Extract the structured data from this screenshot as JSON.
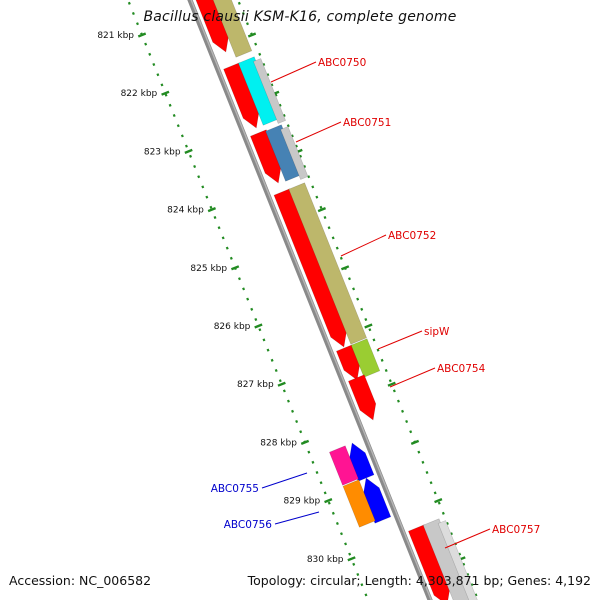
{
  "title": "Bacillus clausii KSM-K16, complete genome",
  "accession_label": "Accession: NC_006582",
  "summary": "Topology: circular; Length: 4,303,871 bp; Genes: 4,192",
  "colors": {
    "backbone": "#8a8a8a",
    "tick": "#228b22",
    "label_forward": "#e00000",
    "label_reverse": "#0000cc",
    "ruler_text": "#111111"
  },
  "ruler": {
    "ticks": [
      {
        "label": "821 kbp"
      },
      {
        "label": "822 kbp"
      },
      {
        "label": "823 kbp"
      },
      {
        "label": "824 kbp"
      },
      {
        "label": "825 kbp"
      },
      {
        "label": "826 kbp"
      },
      {
        "label": "827 kbp"
      },
      {
        "label": "828 kbp"
      },
      {
        "label": "829 kbp"
      },
      {
        "label": "830 kbp"
      }
    ]
  },
  "genes": [
    {
      "name": "ABC0750",
      "strand": "forward",
      "labeled": true
    },
    {
      "name": "ABC0751",
      "strand": "forward",
      "labeled": true
    },
    {
      "name": "ABC0752",
      "strand": "forward",
      "labeled": true
    },
    {
      "name": "sipW",
      "strand": "forward",
      "labeled": true
    },
    {
      "name": "ABC0754",
      "strand": "forward",
      "labeled": true
    },
    {
      "name": "ABC0755",
      "strand": "reverse",
      "labeled": true
    },
    {
      "name": "ABC0756",
      "strand": "reverse",
      "labeled": true
    },
    {
      "name": "ABC0757",
      "strand": "forward",
      "labeled": true
    }
  ],
  "feature_colors": {
    "gene": "#ff0000",
    "cog_olive": "#bdb76b",
    "cog_cyan": "#00f0f0",
    "cog_grey": "#c8c8c8",
    "cog_steel": "#4682b4",
    "cog_lime": "#9acd32",
    "cog_magenta": "#ff1493",
    "cog_orange": "#ff8c00",
    "reverse_gene": "#0000ff"
  }
}
